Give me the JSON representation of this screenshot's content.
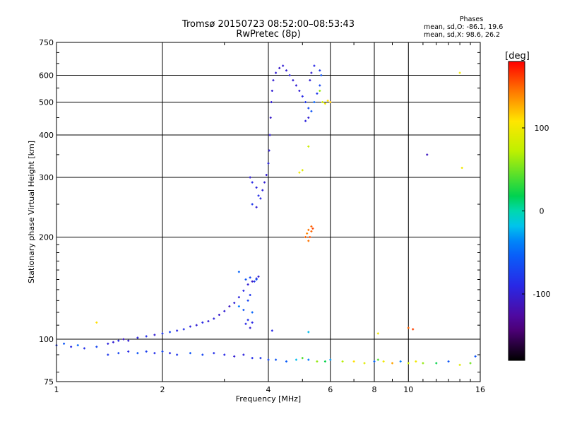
{
  "chart_data": {
    "type": "scatter",
    "title": "Tromsø 20150723 08:52:00–08:53:43",
    "subtitle": "RwPretec (8p)",
    "xlabel": "Frequency [MHz]",
    "ylabel": "Stationary phase Virtual Height [km]",
    "x_scale": "log",
    "y_scale": "log",
    "xlim": [
      1,
      16
    ],
    "ylim": [
      75,
      750
    ],
    "x_ticks": [
      1,
      2,
      4,
      6,
      8,
      10,
      16
    ],
    "x_tick_labels": [
      "1",
      "2",
      "4",
      "6",
      "8",
      "10",
      "16"
    ],
    "x_minor_ticks": [
      3,
      5,
      7,
      9,
      11,
      12,
      13,
      14,
      15
    ],
    "y_ticks": [
      75,
      100,
      200,
      300,
      400,
      500,
      600,
      750
    ],
    "y_tick_labels": [
      "75",
      "100",
      "200",
      "300",
      "400",
      "500",
      "600",
      "750"
    ],
    "y_minor_ticks": [
      80,
      90,
      110,
      120,
      130,
      140,
      150,
      160,
      170,
      180,
      190,
      250,
      350,
      450,
      550,
      650,
      700
    ],
    "grid": true,
    "phases": {
      "title": "Phases",
      "line_o": "mean, sd,O: -86.1, 19.6",
      "line_x": "mean, sd,X:  98.6, 26.2"
    },
    "colorbar": {
      "label": "[deg]",
      "range": [
        -180,
        180
      ],
      "ticks": [
        100,
        0,
        -100
      ],
      "tick_labels": [
        "100",
        "0",
        "-100"
      ],
      "colormap": "rainbow (black-purple-blue-cyan-green-yellow-orange-red)"
    },
    "series": [
      {
        "points": [
          [
            1.0,
            96,
            -80
          ],
          [
            1.05,
            97,
            -60
          ],
          [
            1.1,
            95,
            -90
          ],
          [
            1.15,
            96,
            -50
          ],
          [
            1.2,
            94,
            -85
          ],
          [
            1.3,
            95,
            -70
          ],
          [
            1.4,
            97,
            -95
          ],
          [
            1.45,
            98,
            -100
          ],
          [
            1.5,
            99,
            -90
          ],
          [
            1.55,
            100,
            -110
          ],
          [
            1.6,
            99,
            -100
          ],
          [
            1.7,
            101,
            -95
          ],
          [
            1.8,
            102,
            -85
          ],
          [
            1.9,
            103,
            -100
          ],
          [
            2.0,
            104,
            -80
          ],
          [
            2.1,
            105,
            -70
          ],
          [
            2.2,
            106,
            -90
          ],
          [
            2.3,
            107,
            -85
          ],
          [
            2.4,
            109,
            -95
          ],
          [
            2.5,
            110,
            -100
          ],
          [
            2.6,
            112,
            -90
          ],
          [
            2.7,
            113,
            -100
          ],
          [
            2.8,
            115,
            -95
          ],
          [
            2.9,
            118,
            -105
          ],
          [
            3.0,
            121,
            -100
          ],
          [
            3.1,
            125,
            -110
          ],
          [
            3.2,
            128,
            -100
          ],
          [
            3.3,
            133,
            -95
          ],
          [
            3.4,
            139,
            -90
          ],
          [
            3.5,
            145,
            -100
          ],
          [
            3.6,
            148,
            -110
          ],
          [
            3.7,
            151,
            -105
          ],
          [
            3.75,
            153,
            -100
          ],
          [
            3.3,
            158,
            -50
          ],
          [
            3.45,
            150,
            -60
          ],
          [
            3.55,
            152,
            -70
          ],
          [
            3.65,
            148,
            -80
          ],
          [
            3.7,
            150,
            -60
          ],
          [
            3.3,
            125,
            -40
          ],
          [
            3.4,
            122,
            -60
          ],
          [
            3.5,
            130,
            -70
          ],
          [
            3.55,
            135,
            -80
          ],
          [
            3.6,
            120,
            -50
          ],
          [
            3.45,
            111,
            -90
          ],
          [
            3.55,
            108,
            -100
          ],
          [
            3.5,
            114,
            -85
          ],
          [
            3.6,
            112,
            -90
          ]
        ]
      },
      {
        "points": [
          [
            1.4,
            90,
            -80
          ],
          [
            1.5,
            91,
            -70
          ],
          [
            1.6,
            92,
            -90
          ],
          [
            1.7,
            91,
            -60
          ],
          [
            1.8,
            92,
            -75
          ],
          [
            1.9,
            91,
            -85
          ],
          [
            2.0,
            92,
            -70
          ],
          [
            2.1,
            91,
            -90
          ],
          [
            2.2,
            90,
            -80
          ],
          [
            2.4,
            91,
            -60
          ],
          [
            2.6,
            90,
            -70
          ],
          [
            2.8,
            91,
            -85
          ],
          [
            3.0,
            90,
            -90
          ],
          [
            3.2,
            89,
            -100
          ],
          [
            3.4,
            90,
            -95
          ],
          [
            3.6,
            88,
            -85
          ],
          [
            3.8,
            88,
            -80
          ],
          [
            4.0,
            87,
            -70
          ],
          [
            4.2,
            87,
            -60
          ],
          [
            4.5,
            86,
            -55
          ],
          [
            4.8,
            87,
            -20
          ],
          [
            5.0,
            88,
            40
          ],
          [
            5.2,
            87,
            -40
          ],
          [
            5.5,
            86,
            60
          ],
          [
            5.8,
            86,
            20
          ],
          [
            6.0,
            87,
            -30
          ],
          [
            6.5,
            86,
            70
          ],
          [
            7.0,
            86,
            110
          ],
          [
            7.5,
            85,
            90
          ],
          [
            8.0,
            86,
            -50
          ],
          [
            8.2,
            87,
            40
          ],
          [
            8.5,
            86,
            100
          ],
          [
            9.0,
            85,
            130
          ],
          [
            9.5,
            86,
            -40
          ],
          [
            10.0,
            85,
            80
          ],
          [
            10.5,
            86,
            100
          ],
          [
            11.0,
            85,
            60
          ],
          [
            12.0,
            85,
            20
          ],
          [
            13.0,
            86,
            -60
          ],
          [
            14.0,
            84,
            90
          ],
          [
            15.0,
            85,
            50
          ],
          [
            15.5,
            89,
            -60
          ],
          [
            4.1,
            106,
            -90
          ],
          [
            5.2,
            105,
            -20
          ],
          [
            8.2,
            104,
            100
          ],
          [
            10.0,
            108,
            150
          ],
          [
            10.3,
            107,
            160
          ]
        ]
      },
      {
        "points": [
          [
            3.55,
            300,
            -100
          ],
          [
            3.6,
            290,
            -90
          ],
          [
            3.6,
            250,
            -80
          ],
          [
            3.7,
            280,
            -95
          ],
          [
            3.7,
            245,
            -100
          ],
          [
            3.75,
            265,
            -85
          ],
          [
            3.8,
            260,
            -90
          ],
          [
            3.85,
            275,
            -95
          ],
          [
            3.9,
            290,
            -100
          ],
          [
            3.95,
            305,
            -100
          ],
          [
            4.0,
            330,
            -95
          ],
          [
            4.02,
            360,
            -100
          ],
          [
            4.04,
            400,
            -100
          ],
          [
            4.06,
            450,
            -105
          ],
          [
            4.08,
            500,
            -100
          ],
          [
            4.1,
            540,
            -100
          ],
          [
            4.13,
            580,
            -100
          ],
          [
            4.2,
            610,
            -100
          ],
          [
            4.3,
            630,
            -105
          ],
          [
            4.4,
            640,
            -100
          ],
          [
            4.5,
            620,
            -100
          ],
          [
            4.6,
            600,
            -95
          ],
          [
            4.7,
            580,
            -100
          ],
          [
            4.8,
            560,
            -100
          ],
          [
            4.9,
            540,
            -100
          ],
          [
            5.0,
            520,
            -90
          ],
          [
            5.1,
            500,
            -80
          ],
          [
            5.2,
            480,
            -70
          ],
          [
            5.3,
            470,
            -60
          ],
          [
            5.4,
            500,
            -50
          ],
          [
            5.5,
            530,
            -80
          ],
          [
            5.6,
            560,
            -70
          ],
          [
            5.65,
            600,
            -60
          ],
          [
            5.6,
            620,
            -80
          ],
          [
            5.4,
            640,
            -90
          ],
          [
            5.3,
            610,
            -100
          ],
          [
            5.25,
            580,
            -100
          ],
          [
            5.2,
            450,
            -100
          ],
          [
            5.1,
            440,
            -95
          ],
          [
            5.7,
            500,
            80
          ],
          [
            5.8,
            495,
            100
          ],
          [
            5.9,
            505,
            110
          ],
          [
            6.0,
            500,
            120
          ],
          [
            5.6,
            540,
            60
          ]
        ]
      },
      {
        "points": [
          [
            5.1,
            200,
            150
          ],
          [
            5.15,
            205,
            140
          ],
          [
            5.2,
            210,
            145
          ],
          [
            5.25,
            200,
            155
          ],
          [
            5.3,
            208,
            150
          ],
          [
            5.35,
            212,
            160
          ],
          [
            5.2,
            195,
            145
          ],
          [
            5.3,
            215,
            150
          ]
        ]
      },
      {
        "points": [
          [
            4.9,
            310,
            100
          ],
          [
            5.0,
            315,
            90
          ],
          [
            5.2,
            370,
            80
          ],
          [
            1.3,
            112,
            110
          ],
          [
            11.3,
            350,
            -110
          ],
          [
            14.2,
            320,
            100
          ],
          [
            14.0,
            610,
            100
          ]
        ]
      }
    ]
  }
}
